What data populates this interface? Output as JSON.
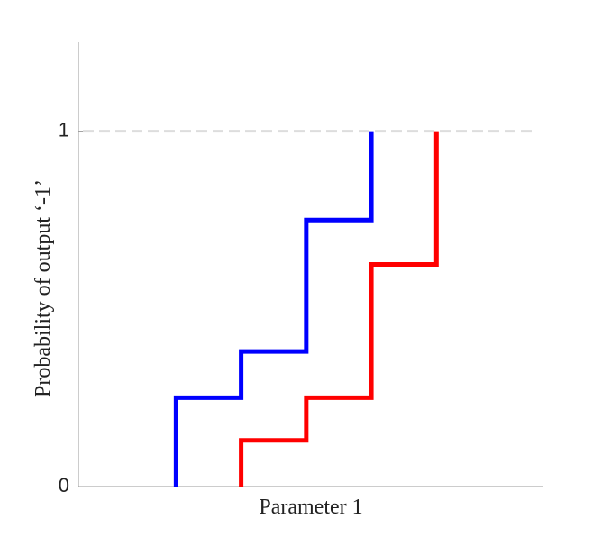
{
  "chart_data": {
    "type": "line",
    "x_label": "Parameter 1",
    "y_label": "Probability of output ‘-1’",
    "xlim": [
      0,
      1
    ],
    "ylim": [
      0,
      1.25
    ],
    "yticks": [
      0,
      1
    ],
    "hline": {
      "value": 1,
      "color": "#dddddd",
      "dash": true
    },
    "series": [
      {
        "color": "#0000ff",
        "x": [
          0.21,
          0.21,
          0.35,
          0.35,
          0.49,
          0.49,
          0.63,
          0.63
        ],
        "values": [
          0,
          0.25,
          0.25,
          0.38,
          0.38,
          0.75,
          0.75,
          1
        ]
      },
      {
        "color": "#ff0000",
        "x": [
          0.35,
          0.35,
          0.49,
          0.49,
          0.63,
          0.63,
          0.77,
          0.77
        ],
        "values": [
          0,
          0.13,
          0.13,
          0.25,
          0.25,
          0.625,
          0.625,
          1
        ]
      }
    ]
  }
}
